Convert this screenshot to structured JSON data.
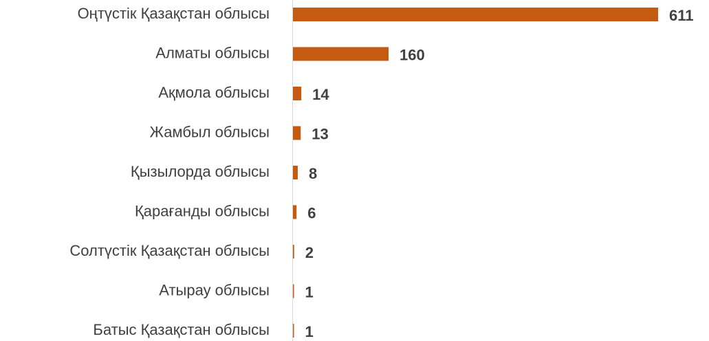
{
  "chart_data": {
    "type": "bar",
    "orientation": "horizontal",
    "categories": [
      "Оңтүстік Қазақстан облысы",
      "Алматы облысы",
      "Ақмола облысы",
      "Жамбыл облысы",
      "Қызылорда облысы",
      "Қарағанды облысы",
      "Солтүстік Қазақстан облысы",
      "Атырау облысы",
      "Батыс Қазақстан облысы"
    ],
    "values": [
      611,
      160,
      14,
      13,
      8,
      6,
      2,
      1,
      1
    ],
    "color": "#c55a11"
  }
}
